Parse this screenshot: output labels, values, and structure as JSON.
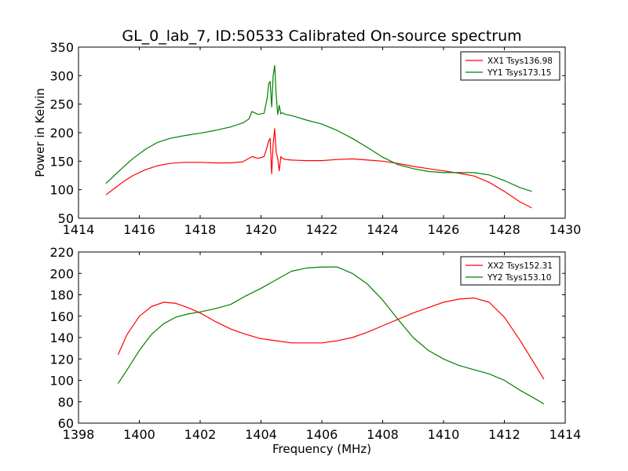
{
  "title": "GL_0_lab_7, ID:50533 Calibrated On-source spectrum",
  "colors": {
    "xx": "#ff0000",
    "yy": "#008000"
  },
  "chart_data": [
    {
      "type": "line",
      "ylabel": "Power in Kelvin",
      "xlabel": "",
      "xlim": [
        1414,
        1430
      ],
      "ylim": [
        50,
        350
      ],
      "xticks": [
        "1414",
        "1416",
        "1418",
        "1420",
        "1422",
        "1424",
        "1426",
        "1428",
        "1430"
      ],
      "yticks": [
        "50",
        "100",
        "150",
        "200",
        "250",
        "300",
        "350"
      ],
      "legend_position": "top-right",
      "series": [
        {
          "name": "XX1 Tsys136.98",
          "color": "#ff0000",
          "x": [
            1414.9,
            1415.2,
            1415.5,
            1415.8,
            1416.2,
            1416.6,
            1417.0,
            1417.5,
            1418.0,
            1418.5,
            1419.0,
            1419.4,
            1419.7,
            1419.9,
            1420.1,
            1420.2,
            1420.25,
            1420.3,
            1420.35,
            1420.4,
            1420.45,
            1420.5,
            1420.55,
            1420.6,
            1420.65,
            1420.7,
            1420.8,
            1421.0,
            1421.5,
            1422.0,
            1422.5,
            1423.0,
            1423.5,
            1424.0,
            1424.5,
            1425.0,
            1425.5,
            1426.0,
            1426.5,
            1427.0,
            1427.5,
            1428.0,
            1428.5,
            1428.9
          ],
          "y": [
            91,
            103,
            115,
            125,
            135,
            142,
            146,
            148,
            148,
            147,
            147,
            149,
            158,
            155,
            158,
            175,
            185,
            190,
            128,
            180,
            207,
            165,
            155,
            133,
            158,
            155,
            153,
            152,
            151,
            151,
            153,
            154,
            152,
            150,
            146,
            141,
            137,
            133,
            129,
            124,
            113,
            97,
            79,
            68
          ]
        },
        {
          "name": "YY1 Tsys173.15",
          "color": "#008000",
          "x": [
            1414.9,
            1415.2,
            1415.5,
            1415.8,
            1416.2,
            1416.6,
            1417.0,
            1417.5,
            1418.0,
            1418.5,
            1419.0,
            1419.4,
            1419.6,
            1419.7,
            1419.9,
            1420.1,
            1420.2,
            1420.25,
            1420.3,
            1420.35,
            1420.4,
            1420.45,
            1420.5,
            1420.55,
            1420.6,
            1420.65,
            1420.7,
            1420.8,
            1421.0,
            1421.5,
            1422.0,
            1422.5,
            1423.0,
            1423.5,
            1424.0,
            1424.5,
            1425.0,
            1425.5,
            1426.0,
            1426.5,
            1427.0,
            1427.5,
            1428.0,
            1428.5,
            1428.9
          ],
          "y": [
            111,
            126,
            141,
            155,
            171,
            183,
            190,
            195,
            199,
            204,
            210,
            217,
            224,
            237,
            232,
            234,
            260,
            285,
            290,
            245,
            300,
            318,
            265,
            232,
            248,
            233,
            235,
            232,
            230,
            222,
            215,
            204,
            190,
            174,
            157,
            144,
            137,
            132,
            130,
            130,
            130,
            126,
            116,
            104,
            97
          ]
        }
      ]
    },
    {
      "type": "line",
      "xlabel": "Frequency (MHz)",
      "ylabel": "",
      "xlim": [
        1398,
        1414
      ],
      "ylim": [
        60,
        220
      ],
      "xticks": [
        "1398",
        "1400",
        "1402",
        "1404",
        "1406",
        "1408",
        "1410",
        "1412",
        "1414"
      ],
      "yticks": [
        "60",
        "80",
        "100",
        "120",
        "140",
        "160",
        "180",
        "200",
        "220"
      ],
      "legend_position": "top-right",
      "series": [
        {
          "name": "XX2 Tsys152.31",
          "color": "#ff0000",
          "x": [
            1399.3,
            1399.6,
            1400.0,
            1400.4,
            1400.8,
            1401.2,
            1401.6,
            1402.0,
            1402.5,
            1403.0,
            1403.5,
            1404.0,
            1404.5,
            1405.0,
            1405.5,
            1406.0,
            1406.5,
            1407.0,
            1407.5,
            1408.0,
            1408.5,
            1409.0,
            1409.5,
            1410.0,
            1410.5,
            1411.0,
            1411.5,
            1412.0,
            1412.5,
            1413.0,
            1413.3
          ],
          "y": [
            124,
            143,
            160,
            169,
            173,
            172,
            168,
            163,
            155,
            148,
            143,
            139,
            137,
            135,
            135,
            135,
            137,
            140,
            145,
            151,
            157,
            163,
            168,
            173,
            176,
            177,
            173,
            159,
            138,
            115,
            101
          ]
        },
        {
          "name": "YY2 Tsys153.10",
          "color": "#008000",
          "x": [
            1399.3,
            1399.6,
            1400.0,
            1400.4,
            1400.8,
            1401.2,
            1401.6,
            1402.0,
            1402.5,
            1403.0,
            1403.5,
            1404.0,
            1404.5,
            1405.0,
            1405.5,
            1406.0,
            1406.5,
            1407.0,
            1407.5,
            1408.0,
            1408.5,
            1409.0,
            1409.5,
            1410.0,
            1410.5,
            1411.0,
            1411.5,
            1412.0,
            1412.5,
            1413.0,
            1413.3
          ],
          "y": [
            97,
            110,
            128,
            143,
            153,
            159,
            162,
            164,
            167,
            171,
            179,
            186,
            194,
            202,
            205,
            206,
            206,
            200,
            190,
            175,
            157,
            140,
            128,
            120,
            114,
            110,
            106,
            100,
            91,
            83,
            78
          ]
        }
      ]
    }
  ]
}
